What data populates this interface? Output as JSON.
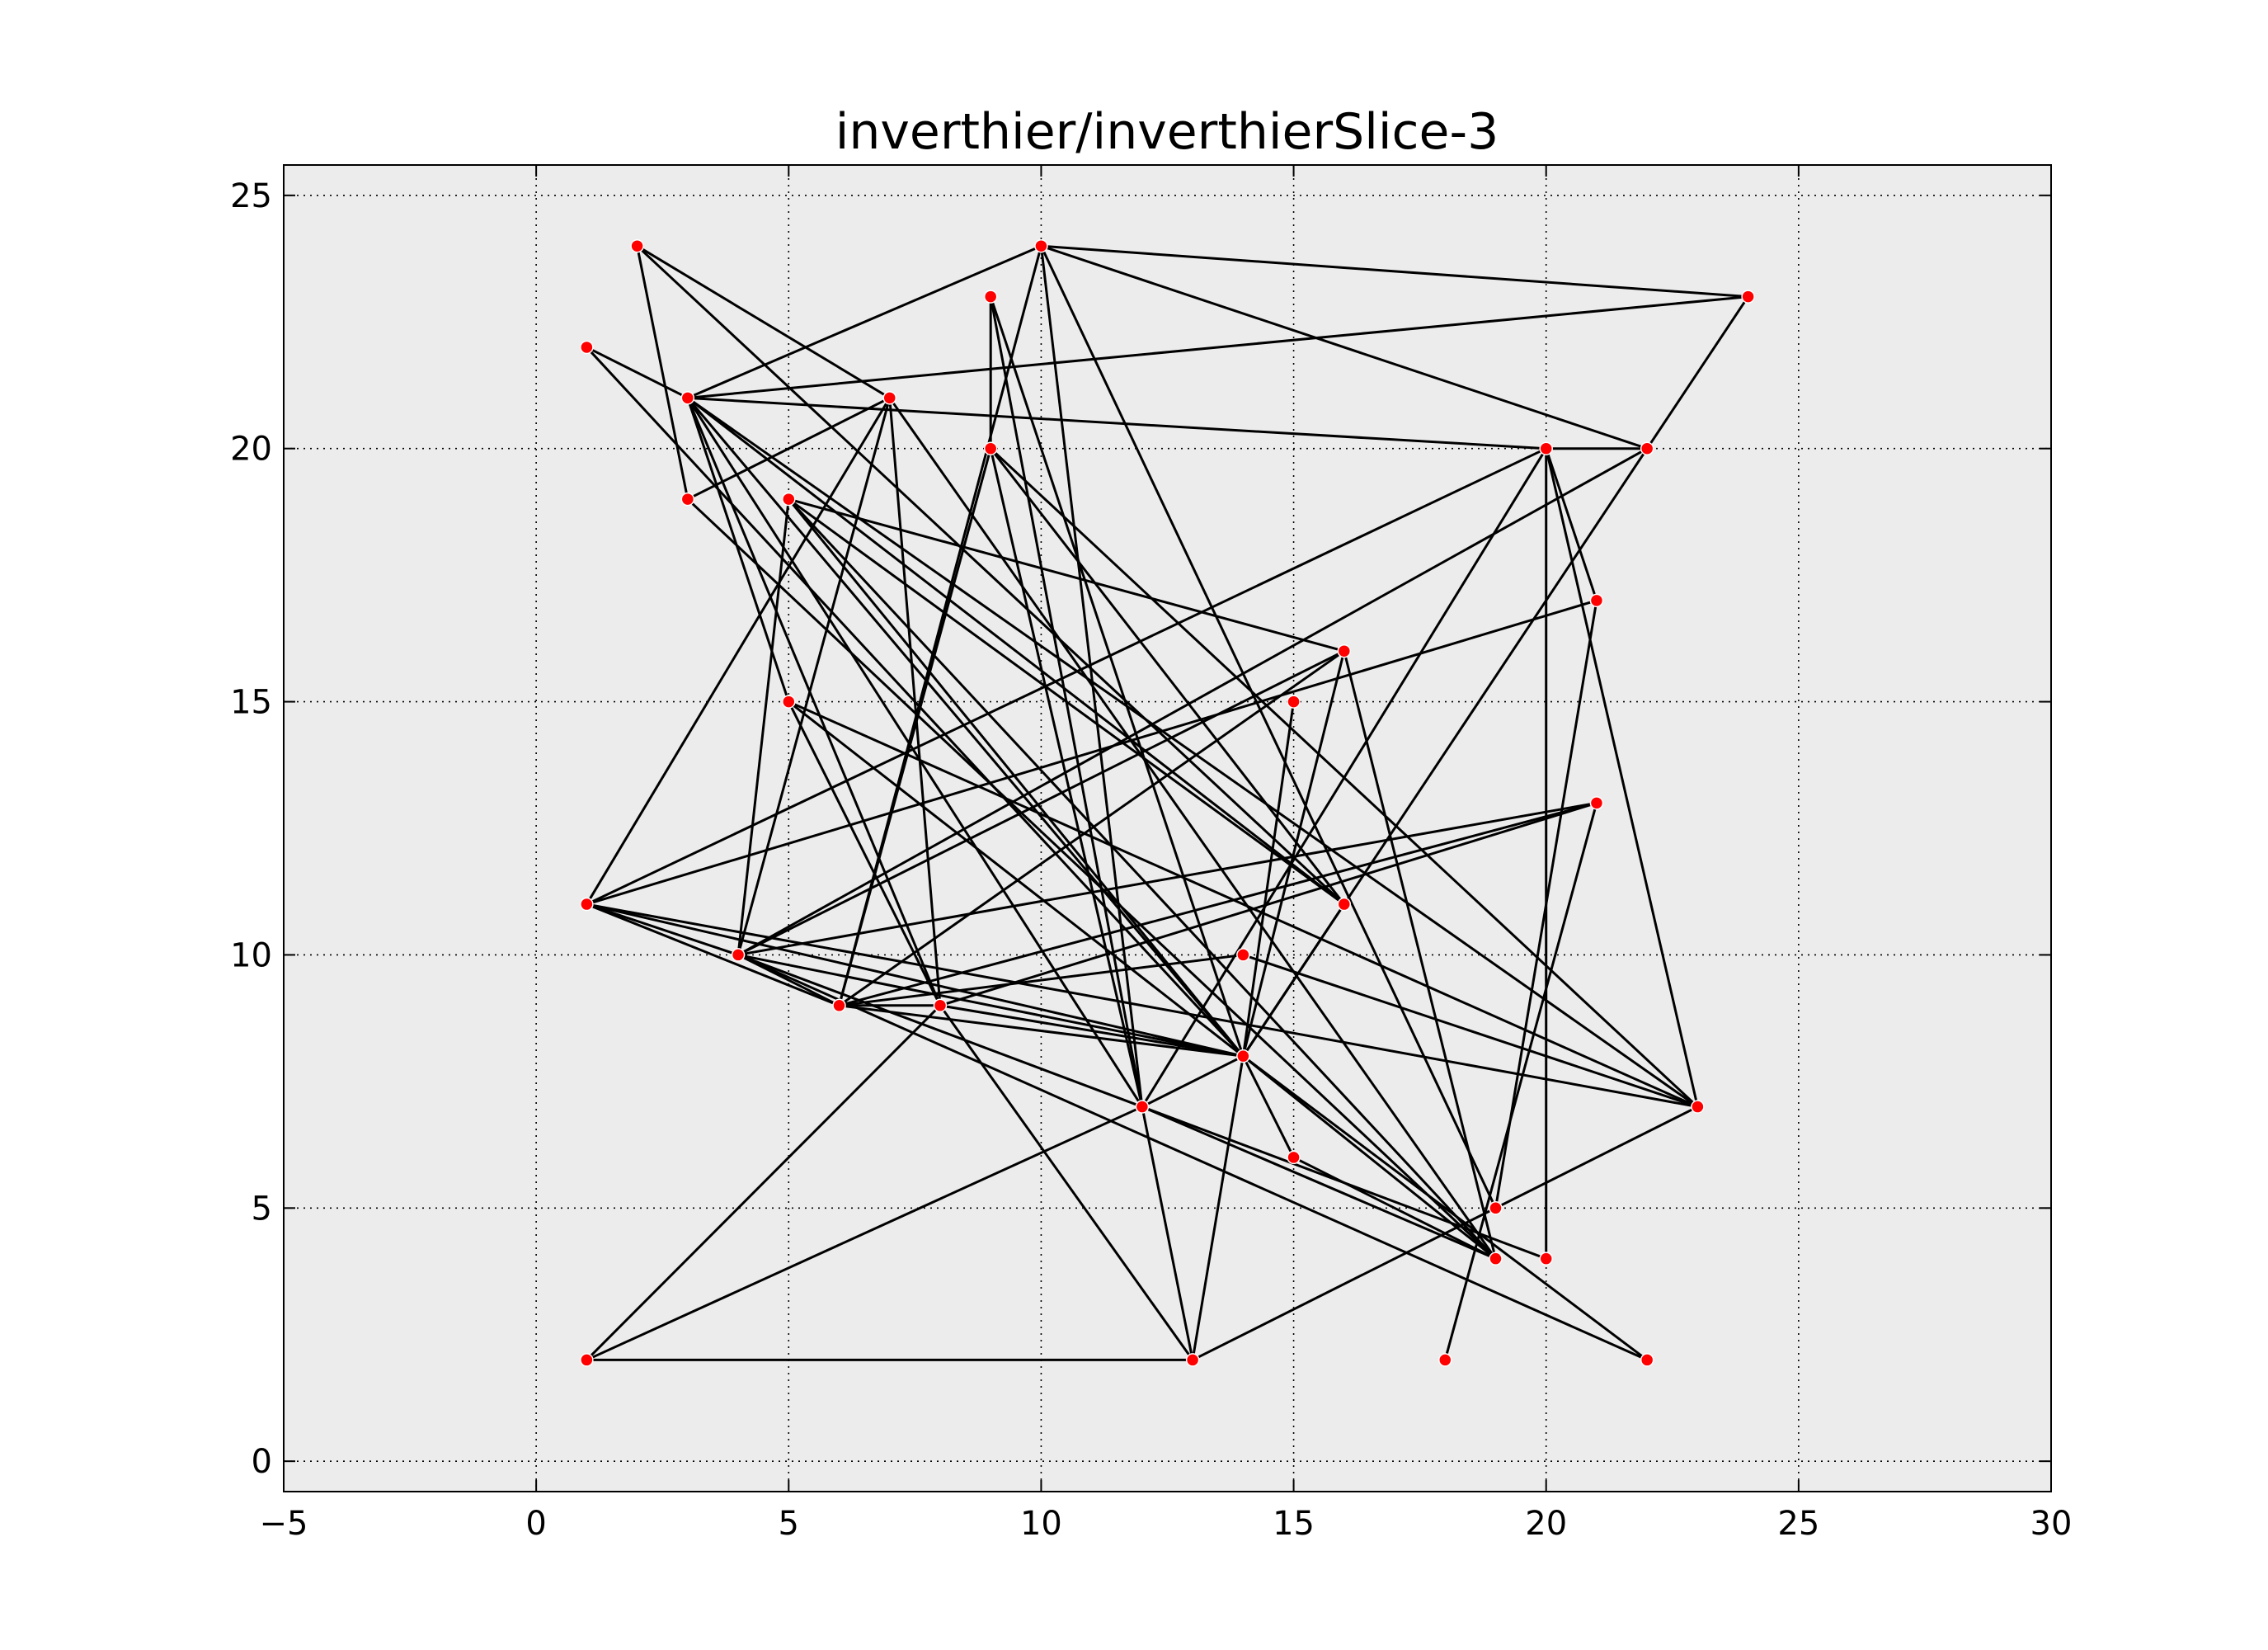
{
  "chart_data": {
    "type": "scatter",
    "title": "inverthier/inverthierSlice-3",
    "xlabel": "",
    "ylabel": "",
    "xlim": [
      -5,
      30
    ],
    "ylim": [
      -0.6,
      25.6
    ],
    "xticks": [
      -5,
      0,
      5,
      10,
      15,
      20,
      25,
      30
    ],
    "yticks": [
      0,
      5,
      10,
      15,
      20,
      25
    ],
    "xtick_labels": [
      "−5",
      "0",
      "5",
      "10",
      "15",
      "20",
      "25",
      "30"
    ],
    "ytick_labels": [
      "0",
      "5",
      "10",
      "15",
      "20",
      "25"
    ],
    "grid": true,
    "background": "#ececec",
    "edge_color": "#000000",
    "node_color": "#ff0000",
    "nodes": [
      [
        1,
        2
      ],
      [
        1,
        11
      ],
      [
        1,
        22
      ],
      [
        2,
        24
      ],
      [
        3,
        19
      ],
      [
        3,
        21
      ],
      [
        4,
        10
      ],
      [
        5,
        15
      ],
      [
        5,
        19
      ],
      [
        6,
        9
      ],
      [
        7,
        21
      ],
      [
        8,
        9
      ],
      [
        9,
        20
      ],
      [
        9,
        23
      ],
      [
        10,
        24
      ],
      [
        12,
        7
      ],
      [
        13,
        2
      ],
      [
        14,
        8
      ],
      [
        14,
        10
      ],
      [
        15,
        6
      ],
      [
        15,
        15
      ],
      [
        16,
        11
      ],
      [
        16,
        16
      ],
      [
        18,
        2
      ],
      [
        19,
        4
      ],
      [
        19,
        5
      ],
      [
        20,
        4
      ],
      [
        20,
        20
      ],
      [
        21,
        13
      ],
      [
        21,
        17
      ],
      [
        22,
        2
      ],
      [
        22,
        20
      ],
      [
        23,
        7
      ],
      [
        24,
        23
      ]
    ],
    "edges": [
      [
        [
          1,
          2
        ],
        [
          13,
          2
        ]
      ],
      [
        [
          1,
          2
        ],
        [
          8,
          9
        ]
      ],
      [
        [
          1,
          2
        ],
        [
          12,
          7
        ]
      ],
      [
        [
          13,
          2
        ],
        [
          23,
          7
        ]
      ],
      [
        [
          13,
          2
        ],
        [
          12,
          7
        ]
      ],
      [
        [
          13,
          2
        ],
        [
          14,
          8
        ]
      ],
      [
        [
          13,
          2
        ],
        [
          8,
          9
        ]
      ],
      [
        [
          2,
          24
        ],
        [
          3,
          19
        ]
      ],
      [
        [
          2,
          24
        ],
        [
          7,
          21
        ]
      ],
      [
        [
          2,
          24
        ],
        [
          16,
          11
        ]
      ],
      [
        [
          1,
          22
        ],
        [
          3,
          21
        ]
      ],
      [
        [
          1,
          22
        ],
        [
          14,
          8
        ]
      ],
      [
        [
          3,
          19
        ],
        [
          7,
          21
        ]
      ],
      [
        [
          3,
          19
        ],
        [
          19,
          4
        ]
      ],
      [
        [
          3,
          21
        ],
        [
          24,
          23
        ]
      ],
      [
        [
          3,
          21
        ],
        [
          20,
          20
        ]
      ],
      [
        [
          3,
          21
        ],
        [
          10,
          24
        ]
      ],
      [
        [
          3,
          21
        ],
        [
          5,
          15
        ]
      ],
      [
        [
          3,
          21
        ],
        [
          14,
          8
        ]
      ],
      [
        [
          3,
          21
        ],
        [
          16,
          11
        ]
      ],
      [
        [
          3,
          21
        ],
        [
          12,
          7
        ]
      ],
      [
        [
          3,
          21
        ],
        [
          8,
          9
        ]
      ],
      [
        [
          3,
          21
        ],
        [
          23,
          7
        ]
      ],
      [
        [
          10,
          24
        ],
        [
          24,
          23
        ]
      ],
      [
        [
          10,
          24
        ],
        [
          22,
          20
        ]
      ],
      [
        [
          10,
          24
        ],
        [
          19,
          5
        ]
      ],
      [
        [
          10,
          24
        ],
        [
          12,
          7
        ]
      ],
      [
        [
          10,
          24
        ],
        [
          6,
          9
        ]
      ],
      [
        [
          9,
          23
        ],
        [
          9,
          20
        ]
      ],
      [
        [
          9,
          23
        ],
        [
          14,
          8
        ]
      ],
      [
        [
          9,
          23
        ],
        [
          12,
          7
        ]
      ],
      [
        [
          7,
          21
        ],
        [
          1,
          11
        ]
      ],
      [
        [
          7,
          21
        ],
        [
          8,
          9
        ]
      ],
      [
        [
          7,
          21
        ],
        [
          4,
          10
        ]
      ],
      [
        [
          7,
          21
        ],
        [
          19,
          4
        ]
      ],
      [
        [
          9,
          20
        ],
        [
          6,
          9
        ]
      ],
      [
        [
          9,
          20
        ],
        [
          12,
          7
        ]
      ],
      [
        [
          9,
          20
        ],
        [
          23,
          7
        ]
      ],
      [
        [
          9,
          20
        ],
        [
          16,
          11
        ]
      ],
      [
        [
          5,
          19
        ],
        [
          4,
          10
        ]
      ],
      [
        [
          5,
          19
        ],
        [
          16,
          16
        ]
      ],
      [
        [
          5,
          19
        ],
        [
          14,
          8
        ]
      ],
      [
        [
          5,
          19
        ],
        [
          16,
          11
        ]
      ],
      [
        [
          5,
          19
        ],
        [
          19,
          4
        ]
      ],
      [
        [
          24,
          23
        ],
        [
          14,
          8
        ]
      ],
      [
        [
          20,
          20
        ],
        [
          22,
          20
        ]
      ],
      [
        [
          20,
          20
        ],
        [
          20,
          4
        ]
      ],
      [
        [
          20,
          20
        ],
        [
          21,
          17
        ]
      ],
      [
        [
          20,
          20
        ],
        [
          12,
          7
        ]
      ],
      [
        [
          20,
          20
        ],
        [
          1,
          11
        ]
      ],
      [
        [
          20,
          20
        ],
        [
          23,
          7
        ]
      ],
      [
        [
          22,
          20
        ],
        [
          4,
          10
        ]
      ],
      [
        [
          21,
          17
        ],
        [
          19,
          5
        ]
      ],
      [
        [
          21,
          17
        ],
        [
          1,
          11
        ]
      ],
      [
        [
          16,
          16
        ],
        [
          14,
          8
        ]
      ],
      [
        [
          16,
          16
        ],
        [
          19,
          4
        ]
      ],
      [
        [
          16,
          16
        ],
        [
          4,
          10
        ]
      ],
      [
        [
          16,
          16
        ],
        [
          6,
          9
        ]
      ],
      [
        [
          15,
          15
        ],
        [
          14,
          8
        ]
      ],
      [
        [
          5,
          15
        ],
        [
          14,
          8
        ]
      ],
      [
        [
          5,
          15
        ],
        [
          8,
          9
        ]
      ],
      [
        [
          5,
          15
        ],
        [
          23,
          7
        ]
      ],
      [
        [
          21,
          13
        ],
        [
          4,
          10
        ]
      ],
      [
        [
          21,
          13
        ],
        [
          6,
          9
        ]
      ],
      [
        [
          21,
          13
        ],
        [
          8,
          9
        ]
      ],
      [
        [
          21,
          13
        ],
        [
          18,
          2
        ]
      ],
      [
        [
          1,
          11
        ],
        [
          4,
          10
        ]
      ],
      [
        [
          1,
          11
        ],
        [
          14,
          8
        ]
      ],
      [
        [
          1,
          11
        ],
        [
          23,
          7
        ]
      ],
      [
        [
          1,
          11
        ],
        [
          6,
          9
        ]
      ],
      [
        [
          4,
          10
        ],
        [
          6,
          9
        ]
      ],
      [
        [
          4,
          10
        ],
        [
          14,
          8
        ]
      ],
      [
        [
          4,
          10
        ],
        [
          12,
          7
        ]
      ],
      [
        [
          4,
          10
        ],
        [
          22,
          2
        ]
      ],
      [
        [
          14,
          10
        ],
        [
          6,
          9
        ]
      ],
      [
        [
          14,
          10
        ],
        [
          23,
          7
        ]
      ],
      [
        [
          6,
          9
        ],
        [
          8,
          9
        ]
      ],
      [
        [
          6,
          9
        ],
        [
          14,
          8
        ]
      ],
      [
        [
          8,
          9
        ],
        [
          14,
          8
        ]
      ],
      [
        [
          16,
          11
        ],
        [
          14,
          8
        ]
      ],
      [
        [
          12,
          7
        ],
        [
          14,
          8
        ]
      ],
      [
        [
          12,
          7
        ],
        [
          20,
          4
        ]
      ],
      [
        [
          12,
          7
        ],
        [
          19,
          4
        ]
      ],
      [
        [
          14,
          8
        ],
        [
          15,
          6
        ]
      ],
      [
        [
          14,
          8
        ],
        [
          19,
          4
        ]
      ],
      [
        [
          14,
          8
        ],
        [
          22,
          2
        ]
      ],
      [
        [
          15,
          6
        ],
        [
          19,
          4
        ]
      ]
    ]
  }
}
